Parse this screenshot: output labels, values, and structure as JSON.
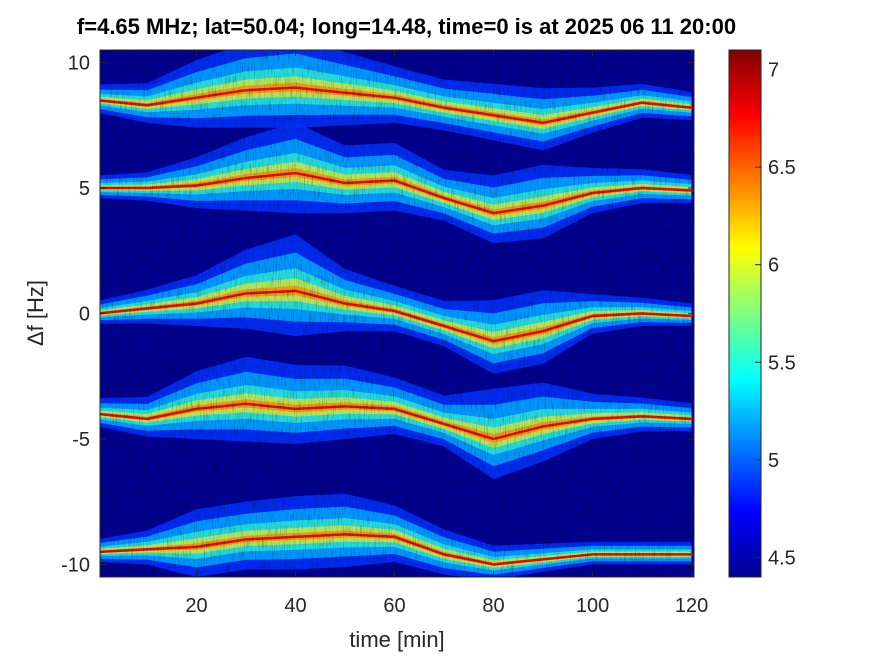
{
  "chart_data": {
    "type": "heatmap",
    "title": "f=4.65 MHz;  lat=50.04; long=14.48, time=0 is at 2025 06 11 20:00",
    "xlabel": "time [min]",
    "ylabel": "Δf [Hz]",
    "xlim": [
      0.5,
      120.5
    ],
    "ylim": [
      -10.5,
      10.5
    ],
    "x_ticks": [
      20,
      40,
      60,
      80,
      100,
      120
    ],
    "x_tick_labels": [
      "20",
      "40",
      "60",
      "80",
      "100",
      "120"
    ],
    "y_ticks": [
      10,
      5,
      0,
      -5,
      -10
    ],
    "y_tick_labels": [
      "10",
      "5",
      "0",
      "-5",
      "-10"
    ],
    "colorbar": {
      "colormap": "jet",
      "range": [
        4.4,
        7.1
      ],
      "ticks": [
        4.5,
        5,
        5.5,
        6,
        6.5,
        7
      ],
      "tick_labels": [
        "4.5",
        "5",
        "5.5",
        "6",
        "6.5",
        "7"
      ]
    },
    "background_color": "#00008f",
    "traces": [
      {
        "band": 5,
        "nominal_hz": 10,
        "t": [
          0,
          10,
          20,
          30,
          40,
          50,
          60,
          70,
          80,
          90,
          100,
          110,
          120
        ],
        "df": [
          8.5,
          8.3,
          8.6,
          8.9,
          9.0,
          8.8,
          8.6,
          8.2,
          7.9,
          7.6,
          8.0,
          8.4,
          8.2
        ],
        "spread": [
          0.5,
          0.7,
          1.2,
          1.5,
          1.6,
          1.3,
          1.0,
          0.9,
          1.0,
          1.1,
          0.8,
          0.6,
          0.5
        ]
      },
      {
        "band": 4,
        "nominal_hz": 5,
        "t": [
          0,
          10,
          20,
          30,
          40,
          50,
          60,
          70,
          80,
          90,
          100,
          110,
          120
        ],
        "df": [
          5.0,
          5.0,
          5.1,
          5.4,
          5.6,
          5.2,
          5.3,
          4.6,
          4.0,
          4.3,
          4.8,
          5.0,
          4.9
        ],
        "spread": [
          0.4,
          0.5,
          0.9,
          1.3,
          1.6,
          1.2,
          1.2,
          0.9,
          1.2,
          1.3,
          0.8,
          0.6,
          0.5
        ]
      },
      {
        "band": 3,
        "nominal_hz": 0,
        "t": [
          0,
          10,
          20,
          30,
          40,
          50,
          60,
          70,
          80,
          90,
          100,
          110,
          120
        ],
        "df": [
          0.0,
          0.2,
          0.4,
          0.8,
          0.9,
          0.4,
          0.1,
          -0.5,
          -1.1,
          -0.7,
          -0.1,
          0.0,
          -0.1
        ],
        "spread": [
          0.4,
          0.6,
          0.9,
          1.4,
          1.8,
          1.1,
          0.8,
          0.8,
          1.3,
          1.3,
          0.7,
          0.5,
          0.4
        ]
      },
      {
        "band": 2,
        "nominal_hz": -5,
        "t": [
          0,
          10,
          20,
          30,
          40,
          50,
          60,
          70,
          80,
          90,
          100,
          110,
          120
        ],
        "df": [
          -4.0,
          -4.2,
          -3.8,
          -3.6,
          -3.8,
          -3.7,
          -3.8,
          -4.4,
          -5.0,
          -4.5,
          -4.2,
          -4.1,
          -4.2
        ],
        "spread": [
          0.5,
          0.7,
          1.2,
          1.5,
          1.4,
          1.3,
          1.0,
          0.9,
          1.6,
          1.4,
          0.8,
          0.6,
          0.5
        ]
      },
      {
        "band": 1,
        "nominal_hz": -10,
        "t": [
          0,
          10,
          20,
          30,
          40,
          50,
          60,
          70,
          80,
          90,
          100,
          110,
          120
        ],
        "df": [
          -9.5,
          -9.4,
          -9.3,
          -9.0,
          -8.9,
          -8.8,
          -8.9,
          -9.6,
          -10.0,
          -9.8,
          -9.6,
          -9.6,
          -9.6
        ],
        "spread": [
          0.4,
          0.6,
          1.2,
          1.2,
          1.3,
          1.3,
          1.0,
          0.8,
          0.6,
          0.5,
          0.4,
          0.4,
          0.4
        ]
      }
    ]
  }
}
